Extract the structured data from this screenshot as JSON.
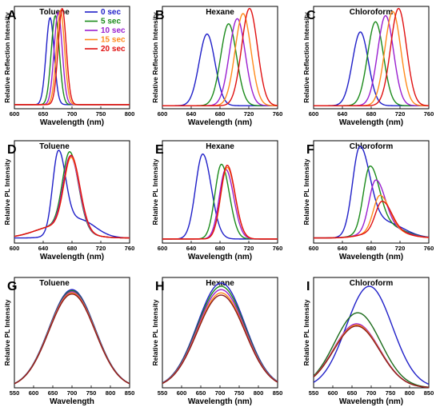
{
  "chart_data": [
    {
      "panel": "A",
      "type": "line",
      "title": "Toluene",
      "xlabel": "Wavelength (nm)",
      "ylabel": "Relative Reflection Intensity",
      "xlim": [
        600,
        800
      ],
      "xticks": [
        600,
        650,
        700,
        750,
        800
      ],
      "legend": {
        "placement": "top-right"
      },
      "series": [
        {
          "name": "0 sec",
          "color": "#1f1fc8",
          "curve": {
            "peak": 662,
            "sigma": 7,
            "sigma_right": 7,
            "amp": 0.85,
            "base": 0.04
          }
        },
        {
          "name": "5 sec",
          "color": "#1a8a1a",
          "curve": {
            "peak": 671,
            "sigma": 7,
            "sigma_right": 7,
            "amp": 0.87,
            "base": 0.04
          }
        },
        {
          "name": "10 sec",
          "color": "#9a1fd0",
          "curve": {
            "peak": 676,
            "sigma": 7,
            "sigma_right": 7,
            "amp": 0.9,
            "base": 0.04
          }
        },
        {
          "name": "15 sec",
          "color": "#ff8a1a",
          "curve": {
            "peak": 680,
            "sigma": 7,
            "sigma_right": 7,
            "amp": 0.92,
            "base": 0.04
          }
        },
        {
          "name": "20 sec",
          "color": "#e01010",
          "curve": {
            "peak": 683,
            "sigma": 7,
            "sigma_right": 7,
            "amp": 0.94,
            "base": 0.04
          }
        }
      ]
    },
    {
      "panel": "B",
      "type": "line",
      "title": "Hexane",
      "xlabel": "Wavelength (nm)",
      "ylabel": "Relative Reflection Intensity",
      "xlim": [
        600,
        760
      ],
      "xticks": [
        600,
        640,
        680,
        720,
        760
      ],
      "series": [
        {
          "color": "#1f1fc8",
          "curve": {
            "peak": 662,
            "sigma": 11,
            "sigma_right": 11,
            "amp": 0.7,
            "base": 0.03
          }
        },
        {
          "color": "#1a8a1a",
          "curve": {
            "peak": 692,
            "sigma": 11,
            "sigma_right": 11,
            "amp": 0.8,
            "base": 0.03
          }
        },
        {
          "color": "#9a1fd0",
          "curve": {
            "peak": 704,
            "sigma": 11,
            "sigma_right": 11,
            "amp": 0.85,
            "base": 0.03
          }
        },
        {
          "color": "#ff8a1a",
          "curve": {
            "peak": 712,
            "sigma": 11,
            "sigma_right": 11,
            "amp": 0.9,
            "base": 0.03
          }
        },
        {
          "color": "#e01010",
          "curve": {
            "peak": 721,
            "sigma": 11,
            "sigma_right": 11,
            "amp": 0.95,
            "base": 0.03
          }
        }
      ]
    },
    {
      "panel": "C",
      "type": "line",
      "title": "Chloroform",
      "xlabel": "Wavelength (nm)",
      "ylabel": "Relative Reflection Intensity",
      "xlim": [
        600,
        760
      ],
      "xticks": [
        600,
        640,
        680,
        720,
        760
      ],
      "series": [
        {
          "color": "#1f1fc8",
          "curve": {
            "peak": 665,
            "sigma": 11,
            "sigma_right": 11,
            "amp": 0.72,
            "base": 0.03
          }
        },
        {
          "color": "#1a8a1a",
          "curve": {
            "peak": 686,
            "sigma": 11,
            "sigma_right": 11,
            "amp": 0.82,
            "base": 0.03
          }
        },
        {
          "color": "#9a1fd0",
          "curve": {
            "peak": 700,
            "sigma": 11,
            "sigma_right": 11,
            "amp": 0.88,
            "base": 0.03
          }
        },
        {
          "color": "#ff8a1a",
          "curve": {
            "peak": 710,
            "sigma": 11,
            "sigma_right": 11,
            "amp": 0.92,
            "base": 0.03
          }
        },
        {
          "color": "#e01010",
          "curve": {
            "peak": 718,
            "sigma": 11,
            "sigma_right": 11,
            "amp": 0.95,
            "base": 0.03
          }
        }
      ]
    },
    {
      "panel": "D",
      "type": "line",
      "title": "Toluene",
      "xlabel": "Wavelength (nm)",
      "ylabel": "Relative PL Intensity",
      "xlim": [
        600,
        760
      ],
      "xticks": [
        600,
        640,
        680,
        720,
        760
      ],
      "series": [
        {
          "color": "#1f1fc8",
          "curve": {
            "peak": 661,
            "sigma": 8,
            "sigma_right": 10,
            "amp": 0.78,
            "base": 0.05,
            "shoulder": {
              "peak": 690,
              "sigma": 22,
              "amp": 0.18
            }
          }
        },
        {
          "color": "#1a8a1a",
          "curve": {
            "peak": 677,
            "sigma": 10,
            "sigma_right": 12,
            "amp": 0.74,
            "base": 0.05,
            "shoulder": {
              "peak": 660,
              "sigma": 30,
              "amp": 0.12
            }
          }
        },
        {
          "color": "#9a1fd0",
          "curve": {
            "peak": 678,
            "sigma": 10,
            "sigma_right": 12,
            "amp": 0.7,
            "base": 0.05,
            "shoulder": {
              "peak": 660,
              "sigma": 30,
              "amp": 0.12
            }
          }
        },
        {
          "color": "#ff8a1a",
          "curve": {
            "peak": 679,
            "sigma": 10,
            "sigma_right": 12,
            "amp": 0.69,
            "base": 0.05,
            "shoulder": {
              "peak": 660,
              "sigma": 30,
              "amp": 0.12
            }
          }
        },
        {
          "color": "#e01010",
          "curve": {
            "peak": 679,
            "sigma": 10,
            "sigma_right": 12,
            "amp": 0.71,
            "base": 0.05,
            "shoulder": {
              "peak": 660,
              "sigma": 30,
              "amp": 0.12
            }
          }
        }
      ]
    },
    {
      "panel": "E",
      "type": "line",
      "title": "Hexane",
      "xlabel": "Wavelength (nm)",
      "ylabel": "Relative PL Intensity",
      "xlim": [
        600,
        760
      ],
      "xticks": [
        600,
        640,
        680,
        720,
        760
      ],
      "series": [
        {
          "color": "#1f1fc8",
          "curve": {
            "peak": 656,
            "sigma": 10,
            "sigma_right": 12,
            "amp": 0.83,
            "base": 0.04
          }
        },
        {
          "color": "#1a8a1a",
          "curve": {
            "peak": 682,
            "sigma": 9,
            "sigma_right": 11,
            "amp": 0.73,
            "base": 0.04
          }
        },
        {
          "color": "#9a1fd0",
          "curve": {
            "peak": 688,
            "sigma": 9,
            "sigma_right": 11,
            "amp": 0.68,
            "base": 0.04
          }
        },
        {
          "color": "#ff8a1a",
          "curve": {
            "peak": 690,
            "sigma": 9,
            "sigma_right": 11,
            "amp": 0.7,
            "base": 0.04
          }
        },
        {
          "color": "#e01010",
          "curve": {
            "peak": 690,
            "sigma": 9,
            "sigma_right": 11,
            "amp": 0.72,
            "base": 0.04
          }
        }
      ]
    },
    {
      "panel": "F",
      "type": "line",
      "title": "Chloroform",
      "xlabel": "Wavelength (nm)",
      "ylabel": "Relative PL Intensity",
      "xlim": [
        600,
        760
      ],
      "xticks": [
        600,
        640,
        680,
        720,
        760
      ],
      "series": [
        {
          "color": "#1f1fc8",
          "curve": {
            "peak": 664,
            "sigma": 10,
            "sigma_right": 14,
            "amp": 0.84,
            "base": 0.05,
            "shoulder": {
              "peak": 700,
              "sigma": 25,
              "amp": 0.15
            }
          }
        },
        {
          "color": "#1a8a1a",
          "curve": {
            "peak": 678,
            "sigma": 9,
            "sigma_right": 13,
            "amp": 0.62,
            "base": 0.05,
            "shoulder": {
              "peak": 700,
              "sigma": 25,
              "amp": 0.12
            }
          }
        },
        {
          "color": "#9a1fd0",
          "curve": {
            "peak": 686,
            "sigma": 9,
            "sigma_right": 13,
            "amp": 0.48,
            "base": 0.05,
            "shoulder": {
              "peak": 700,
              "sigma": 25,
              "amp": 0.1
            }
          }
        },
        {
          "color": "#ff8a1a",
          "curve": {
            "peak": 692,
            "sigma": 9,
            "sigma_right": 13,
            "amp": 0.34,
            "base": 0.05,
            "shoulder": {
              "peak": 700,
              "sigma": 25,
              "amp": 0.08
            }
          }
        },
        {
          "color": "#e01010",
          "curve": {
            "peak": 695,
            "sigma": 9,
            "sigma_right": 13,
            "amp": 0.28,
            "base": 0.05,
            "shoulder": {
              "peak": 700,
              "sigma": 25,
              "amp": 0.08
            }
          }
        }
      ]
    },
    {
      "panel": "G",
      "type": "line",
      "title": "Toluene",
      "xlabel": "Wavelength",
      "ylabel": "Relative PL Intensity",
      "xlim": [
        550,
        850
      ],
      "xticks": [
        550,
        600,
        650,
        700,
        750,
        800,
        850
      ],
      "series": [
        {
          "color": "#1f1fc8",
          "curve": {
            "peak": 700,
            "sigma": 60,
            "sigma_right": 60,
            "amp": 0.89,
            "base": 0.0
          }
        },
        {
          "color": "#1a8a1a",
          "curve": {
            "peak": 700,
            "sigma": 60,
            "sigma_right": 60,
            "amp": 0.88,
            "base": 0.0
          }
        },
        {
          "color": "#9a1fd0",
          "curve": {
            "peak": 700,
            "sigma": 60,
            "sigma_right": 60,
            "amp": 0.87,
            "base": 0.0
          }
        },
        {
          "color": "#ff8a1a",
          "curve": {
            "peak": 700,
            "sigma": 60,
            "sigma_right": 60,
            "amp": 0.86,
            "base": 0.0
          }
        },
        {
          "color": "#8a1a1a",
          "curve": {
            "peak": 700,
            "sigma": 60,
            "sigma_right": 60,
            "amp": 0.85,
            "base": 0.0
          }
        }
      ]
    },
    {
      "panel": "H",
      "type": "line",
      "title": "Hexane",
      "xlabel": "Wavelength (nm)",
      "ylabel": "Relative PL Intensity",
      "xlim": [
        550,
        850
      ],
      "xticks": [
        550,
        600,
        650,
        700,
        750,
        800,
        850
      ],
      "series": [
        {
          "color": "#1f1fc8",
          "curve": {
            "peak": 703,
            "sigma": 62,
            "sigma_right": 62,
            "amp": 0.95,
            "base": 0.0
          }
        },
        {
          "color": "#1a8a1a",
          "curve": {
            "peak": 703,
            "sigma": 62,
            "sigma_right": 62,
            "amp": 0.92,
            "base": 0.0
          }
        },
        {
          "color": "#9a1fd0",
          "curve": {
            "peak": 703,
            "sigma": 62,
            "sigma_right": 62,
            "amp": 0.89,
            "base": 0.0
          }
        },
        {
          "color": "#ff8a1a",
          "curve": {
            "peak": 703,
            "sigma": 62,
            "sigma_right": 62,
            "amp": 0.86,
            "base": 0.0
          }
        },
        {
          "color": "#8a1a1a",
          "curve": {
            "peak": 703,
            "sigma": 62,
            "sigma_right": 62,
            "amp": 0.84,
            "base": 0.0
          }
        }
      ]
    },
    {
      "panel": "I",
      "type": "line",
      "title": "Chloroform",
      "xlabel": "Wavelength (nm)",
      "ylabel": "Relative PL Intensity",
      "xlim": [
        550,
        850
      ],
      "xticks": [
        550,
        600,
        650,
        700,
        750,
        800,
        850
      ],
      "series": [
        {
          "color": "#1f1fc8",
          "curve": {
            "peak": 695,
            "sigma": 60,
            "sigma_right": 60,
            "amp": 0.92,
            "base": 0.0
          }
        },
        {
          "color": "#1a6a1a",
          "curve": {
            "peak": 665,
            "sigma": 60,
            "sigma_right": 60,
            "amp": 0.68,
            "base": 0.0
          }
        },
        {
          "color": "#9a1fd0",
          "curve": {
            "peak": 662,
            "sigma": 60,
            "sigma_right": 60,
            "amp": 0.58,
            "base": 0.0
          }
        },
        {
          "color": "#ff8a1a",
          "curve": {
            "peak": 662,
            "sigma": 60,
            "sigma_right": 60,
            "amp": 0.57,
            "base": 0.0
          }
        },
        {
          "color": "#8a1a1a",
          "curve": {
            "peak": 662,
            "sigma": 60,
            "sigma_right": 60,
            "amp": 0.56,
            "base": 0.0
          }
        }
      ]
    }
  ]
}
